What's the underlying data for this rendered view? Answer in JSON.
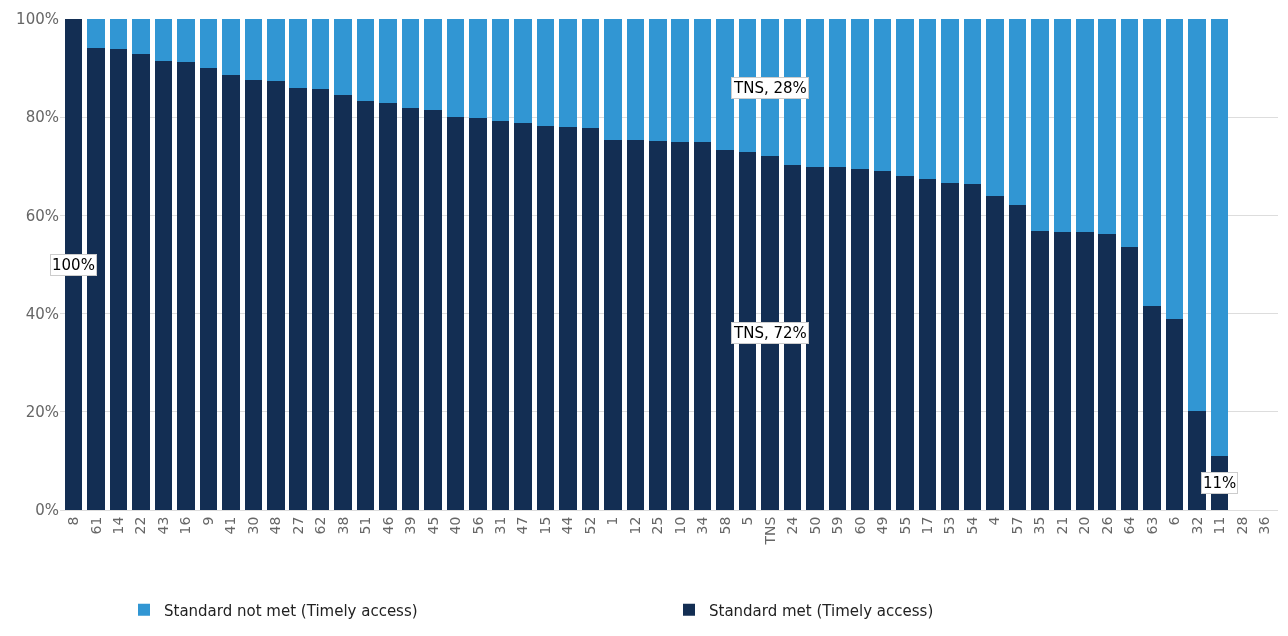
{
  "chart_data": {
    "type": "bar",
    "stacked": true,
    "categories": [
      "8",
      "61",
      "14",
      "22",
      "43",
      "16",
      "9",
      "41",
      "30",
      "48",
      "27",
      "62",
      "38",
      "51",
      "46",
      "39",
      "45",
      "40",
      "56",
      "31",
      "47",
      "15",
      "44",
      "52",
      "1",
      "12",
      "25",
      "10",
      "34",
      "58",
      "5",
      "TNS",
      "24",
      "50",
      "59",
      "60",
      "49",
      "55",
      "17",
      "53",
      "54",
      "4",
      "57",
      "35",
      "21",
      "20",
      "26",
      "64",
      "63",
      "6",
      "32",
      "11",
      "28",
      "36"
    ],
    "series": [
      {
        "name": "Standard met (Timely access)",
        "color": "#132e53",
        "values": [
          100,
          94,
          93.8,
          92.8,
          91.4,
          91.3,
          90.1,
          88.5,
          87.5,
          87.3,
          86,
          85.7,
          84.6,
          83.4,
          82.8,
          81.9,
          81.5,
          80.1,
          79.9,
          79.3,
          78.8,
          78.2,
          78,
          77.8,
          75.4,
          75.4,
          75.2,
          74.9,
          74.9,
          73.4,
          73,
          72,
          70.2,
          69.9,
          69.8,
          69.5,
          69.1,
          68,
          67.4,
          66.5,
          66.3,
          63.9,
          62.1,
          56.9,
          56.7,
          56.6,
          56.3,
          53.6,
          41.5,
          38.8,
          20.1,
          11,
          null,
          null
        ],
        "value_labels": [
          "100%",
          null,
          null,
          null,
          null,
          null,
          null,
          null,
          null,
          null,
          null,
          null,
          null,
          null,
          null,
          null,
          null,
          null,
          null,
          null,
          null,
          null,
          null,
          null,
          null,
          null,
          null,
          null,
          null,
          null,
          null,
          "TNS, 72%",
          null,
          null,
          null,
          null,
          null,
          null,
          null,
          null,
          null,
          null,
          null,
          null,
          null,
          null,
          null,
          null,
          null,
          null,
          null,
          "11%",
          null,
          null
        ]
      },
      {
        "name": "Standard not met (Timely access)",
        "color": "#3196d3",
        "values": [
          0,
          6,
          6.2,
          7.2,
          8.6,
          8.7,
          9.9,
          11.5,
          12.5,
          12.7,
          14,
          14.3,
          15.4,
          16.6,
          17.2,
          18.1,
          18.5,
          19.9,
          20.1,
          20.7,
          21.2,
          21.8,
          22,
          22.2,
          24.6,
          24.6,
          24.8,
          25.1,
          25.1,
          26.6,
          27,
          28,
          29.8,
          30.1,
          30.2,
          30.5,
          30.9,
          32,
          32.6,
          33.5,
          33.7,
          36.1,
          37.9,
          43.1,
          43.3,
          43.4,
          43.7,
          46.4,
          58.5,
          61.2,
          79.9,
          89,
          null,
          null
        ],
        "value_labels": [
          null,
          null,
          null,
          null,
          null,
          null,
          null,
          null,
          null,
          null,
          null,
          null,
          null,
          null,
          null,
          null,
          null,
          null,
          null,
          null,
          null,
          null,
          null,
          null,
          null,
          null,
          null,
          null,
          null,
          null,
          null,
          "TNS, 28%",
          null,
          null,
          null,
          null,
          null,
          null,
          null,
          null,
          null,
          null,
          null,
          null,
          null,
          null,
          null,
          null,
          null,
          null,
          null,
          null,
          null,
          null
        ]
      }
    ],
    "ylim": [
      0,
      100
    ],
    "yticks": [
      {
        "value": 0,
        "label": "0%"
      },
      {
        "value": 20,
        "label": "20%"
      },
      {
        "value": 40,
        "label": "40%"
      },
      {
        "value": 60,
        "label": "60%"
      },
      {
        "value": 80,
        "label": "80%"
      },
      {
        "value": 100,
        "label": "100%"
      }
    ],
    "grid": "y",
    "legend": "bottom"
  }
}
